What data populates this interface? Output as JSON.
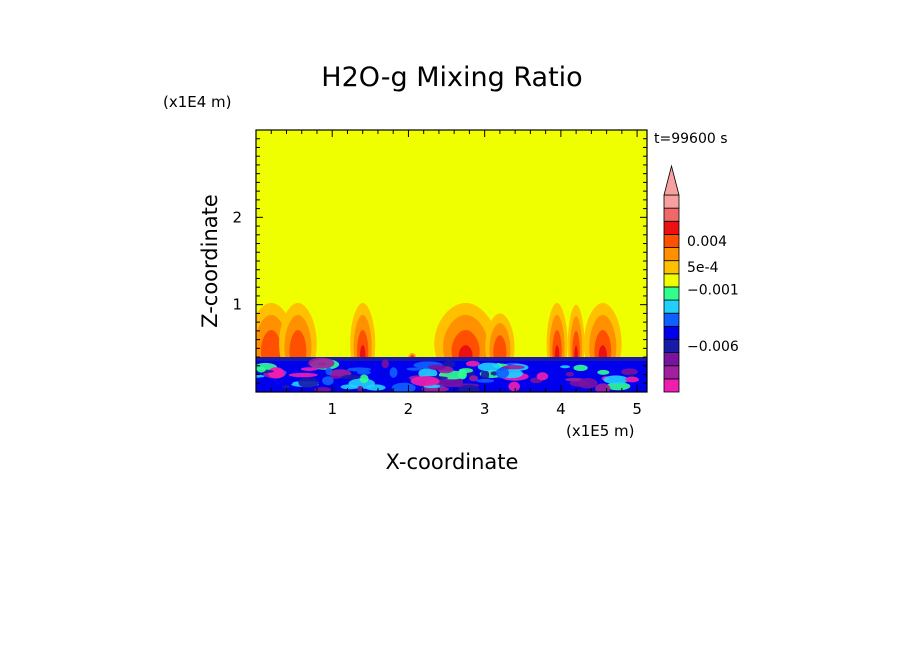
{
  "chart_data": {
    "type": "heatmap",
    "title": "H2O-g Mixing Ratio",
    "xlabel": "X-coordinate",
    "ylabel": "Z-coordinate",
    "x_scale_label": "(x1E5 m)",
    "y_scale_label": "(x1E4 m)",
    "time_label": "t=99600 s",
    "xlim": [
      0,
      5.13
    ],
    "ylim": [
      0,
      3.0
    ],
    "x_ticks": [
      {
        "value": 1,
        "label": "1"
      },
      {
        "value": 2,
        "label": "2"
      },
      {
        "value": 3,
        "label": "3"
      },
      {
        "value": 4,
        "label": "4"
      },
      {
        "value": 5,
        "label": "5"
      }
    ],
    "y_ticks": [
      {
        "value": 1,
        "label": "1"
      },
      {
        "value": 2,
        "label": "2"
      }
    ],
    "background_level_color": "#f0ff00",
    "colorbar": {
      "levels": [
        {
          "color": "#ee1fb0"
        },
        {
          "color": "#a0209f"
        },
        {
          "color": "#7a12a0"
        },
        {
          "color": "#1a1aa8"
        },
        {
          "color": "#0000ee"
        },
        {
          "color": "#1060ff"
        },
        {
          "color": "#20d0ff"
        },
        {
          "color": "#30ff90"
        },
        {
          "color": "#f0ff00"
        },
        {
          "color": "#ffc000"
        },
        {
          "color": "#ff9000"
        },
        {
          "color": "#ff5000"
        },
        {
          "color": "#ee1010"
        },
        {
          "color": "#f06868"
        },
        {
          "color": "#f6a0a0"
        }
      ],
      "labels": [
        {
          "text": "0.004",
          "level": 11.5
        },
        {
          "text": "5e-4",
          "level": 9.5
        },
        {
          "text": "−0.001",
          "level": 7.8
        },
        {
          "text": "−0.006",
          "level": 3.5
        }
      ]
    },
    "plumes": [
      {
        "x": 0.2,
        "top": 1.02,
        "width": 0.55,
        "intensity": "moderate"
      },
      {
        "x": 0.55,
        "top": 1.02,
        "width": 0.45,
        "intensity": "moderate"
      },
      {
        "x": 1.4,
        "top": 1.02,
        "width": 0.3,
        "intensity": "strong"
      },
      {
        "x": 2.05,
        "top": 0.45,
        "width": 0.1,
        "intensity": "strong"
      },
      {
        "x": 2.75,
        "top": 1.02,
        "width": 0.75,
        "intensity": "strong"
      },
      {
        "x": 3.2,
        "top": 0.9,
        "width": 0.35,
        "intensity": "moderate"
      },
      {
        "x": 3.95,
        "top": 1.02,
        "width": 0.25,
        "intensity": "strong"
      },
      {
        "x": 4.2,
        "top": 1.0,
        "width": 0.2,
        "intensity": "strong"
      },
      {
        "x": 4.55,
        "top": 1.02,
        "width": 0.45,
        "intensity": "strong"
      }
    ],
    "boundary_layer_top": 0.4
  }
}
